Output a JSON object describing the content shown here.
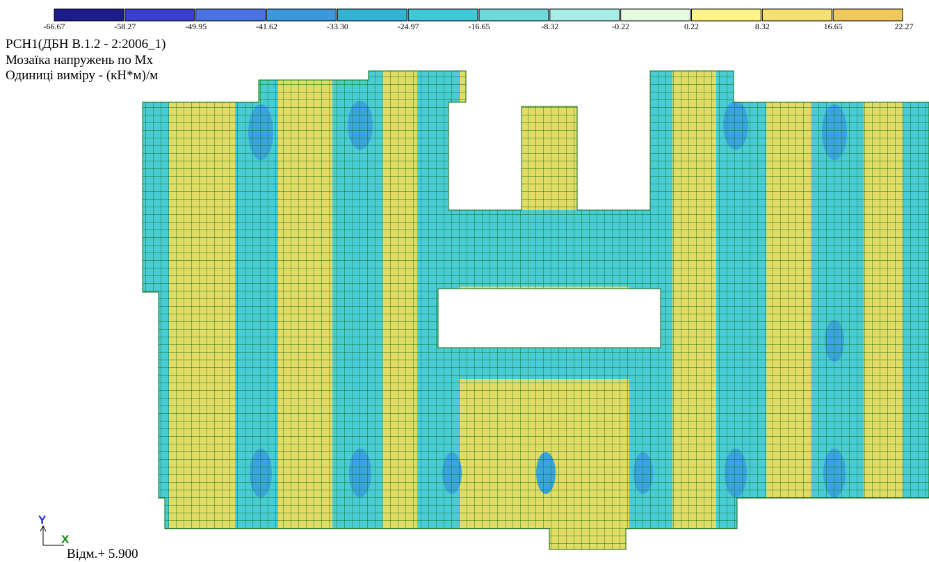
{
  "legend": {
    "labels": [
      "-66.67",
      "-58.27",
      "-49.95",
      "-41.62",
      "-33.30",
      "-24.97",
      "-16.65",
      "-8.32",
      "-0.22",
      "0.22",
      "8.32",
      "16.65",
      "22.27"
    ],
    "colors": [
      "#1c1c8e",
      "#3a3fd0",
      "#4a74e4",
      "#3a98dc",
      "#33b4d6",
      "#3fc8d8",
      "#6cdada",
      "#a6eee6",
      "#e6fae0",
      "#fff484",
      "#f5e070",
      "#f0c85c"
    ]
  },
  "header": {
    "lines": [
      "РСН1(ДБН В.1.2 - 2:2006_1)",
      "Мозаїка напружень по Mx",
      "Одиниці виміру - (кН*м)/м"
    ]
  },
  "axes": {
    "y": "Y",
    "x": "X"
  },
  "footer": {
    "level": "Відм.+ 5.900"
  }
}
